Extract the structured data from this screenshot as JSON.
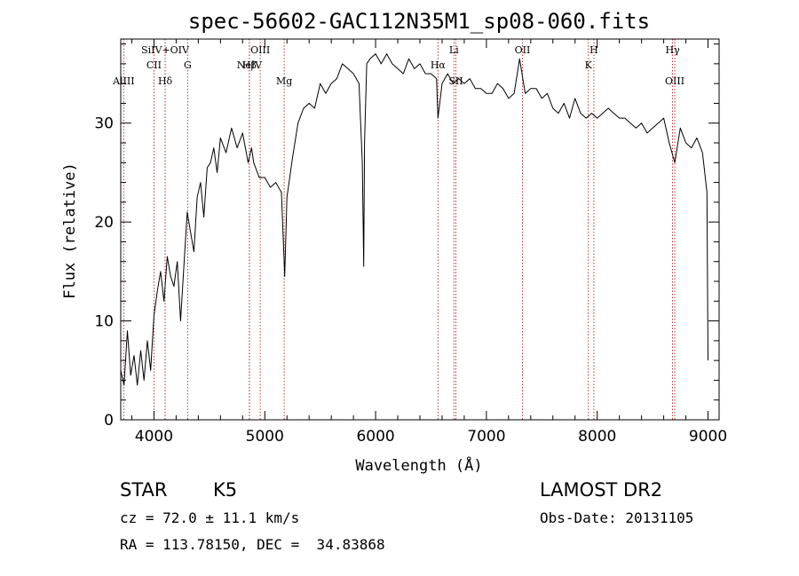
{
  "chart_data": {
    "type": "line",
    "title": "spec-56602-GAC112N35M1_sp08-060.fits",
    "xlabel": "Wavelength (Å)",
    "ylabel": "Flux (relative)",
    "xlim": [
      3700,
      9100
    ],
    "ylim": [
      0,
      38.5
    ],
    "xticks": [
      4000,
      5000,
      6000,
      7000,
      8000,
      9000
    ],
    "yticks": [
      0,
      10,
      20,
      30
    ],
    "grid": false,
    "series": [
      {
        "x": [
          3700,
          3730,
          3760,
          3790,
          3820,
          3850,
          3880,
          3910,
          3940,
          3970,
          4000,
          4030,
          4060,
          4090,
          4120,
          4150,
          4180,
          4210,
          4240,
          4270,
          4300,
          4330,
          4360,
          4390,
          4420,
          4450,
          4480,
          4510,
          4540,
          4570,
          4600,
          4650,
          4700,
          4750,
          4800,
          4850,
          4880,
          4900,
          4950,
          5000,
          5050,
          5100,
          5150,
          5180,
          5200,
          5250,
          5300,
          5350,
          5400,
          5450,
          5500,
          5550,
          5600,
          5650,
          5700,
          5750,
          5800,
          5850,
          5880,
          5893,
          5900,
          5920,
          5950,
          6000,
          6050,
          6100,
          6150,
          6200,
          6250,
          6300,
          6350,
          6400,
          6450,
          6500,
          6550,
          6563,
          6600,
          6650,
          6700,
          6750,
          6800,
          6850,
          6900,
          6950,
          7000,
          7050,
          7100,
          7150,
          7200,
          7250,
          7300,
          7350,
          7400,
          7450,
          7500,
          7550,
          7600,
          7650,
          7700,
          7750,
          7800,
          7850,
          7900,
          7950,
          8000,
          8050,
          8100,
          8150,
          8200,
          8250,
          8300,
          8350,
          8400,
          8450,
          8500,
          8550,
          8600,
          8650,
          8700,
          8750,
          8800,
          8850,
          8900,
          8950,
          8990,
          9000
        ],
        "y": [
          5.0,
          3.5,
          9.0,
          4.5,
          6.5,
          3.5,
          7.0,
          4.0,
          8.0,
          5.0,
          10.5,
          13.0,
          15.0,
          12.0,
          16.5,
          14.5,
          13.5,
          16.0,
          10.0,
          15.5,
          21.0,
          19.0,
          17.0,
          22.5,
          24.0,
          20.5,
          25.5,
          26.0,
          27.5,
          25.0,
          28.5,
          27.0,
          29.5,
          27.5,
          29.0,
          26.0,
          27.5,
          26.0,
          24.5,
          24.5,
          23.5,
          24.0,
          23.0,
          14.5,
          22.5,
          26.5,
          30.0,
          31.5,
          32.0,
          31.5,
          34.0,
          33.0,
          34.0,
          34.5,
          36.0,
          35.5,
          35.0,
          34.0,
          26.0,
          15.5,
          28.0,
          36.0,
          36.5,
          37.0,
          36.0,
          37.0,
          36.0,
          35.5,
          35.0,
          36.5,
          35.5,
          36.0,
          35.0,
          35.0,
          34.5,
          30.5,
          34.0,
          35.0,
          34.0,
          34.5,
          34.0,
          34.5,
          33.5,
          33.5,
          33.0,
          33.0,
          34.0,
          33.5,
          32.5,
          33.0,
          36.5,
          33.0,
          33.5,
          33.5,
          32.5,
          33.0,
          31.5,
          31.0,
          32.0,
          30.5,
          32.5,
          31.0,
          30.5,
          31.0,
          30.5,
          31.0,
          31.5,
          31.0,
          30.5,
          30.5,
          30.0,
          29.5,
          30.0,
          29.0,
          29.5,
          30.0,
          30.5,
          28.0,
          26.0,
          29.5,
          28.0,
          27.5,
          28.5,
          27.0,
          23.0,
          6.0
        ]
      }
    ],
    "line_markers": [
      {
        "label": "AlIII",
        "x": 3727,
        "row": 2
      },
      {
        "label": "CII",
        "x": 4000,
        "row": 1
      },
      {
        "label": "SiIV+OIV",
        "x": 4101,
        "row": 0
      },
      {
        "label": "Hδ",
        "x": 4101,
        "row": 2
      },
      {
        "label": "G",
        "x": 4304,
        "row": 1
      },
      {
        "label": "NeIV",
        "x": 4861,
        "row": 1
      },
      {
        "label": "Hβ",
        "x": 4861,
        "row": 1
      },
      {
        "label": "OIII",
        "x": 4959,
        "row": 0
      },
      {
        "label": "Mg",
        "x": 5175,
        "row": 2
      },
      {
        "label": "Hα",
        "x": 6563,
        "row": 1
      },
      {
        "label": "Li",
        "x": 6707,
        "row": 0
      },
      {
        "label": "SII",
        "x": 6724,
        "row": 2
      },
      {
        "label": "OII",
        "x": 7325,
        "row": 0
      },
      {
        "label": "K",
        "x": 7920,
        "row": 1
      },
      {
        "label": "H",
        "x": 7970,
        "row": 0
      },
      {
        "label": "Hγ",
        "x": 8680,
        "row": 0
      },
      {
        "label": "OIII",
        "x": 8700,
        "row": 2
      }
    ]
  },
  "info": {
    "class_label": "STAR",
    "subclass_label": "K5",
    "survey": "LAMOST DR2",
    "cz": "cz = 72.0 ± 11.1 km/s",
    "obs_date": "Obs-Date: 20131105",
    "coords": "RA = 113.78150, DEC =  34.83868"
  }
}
